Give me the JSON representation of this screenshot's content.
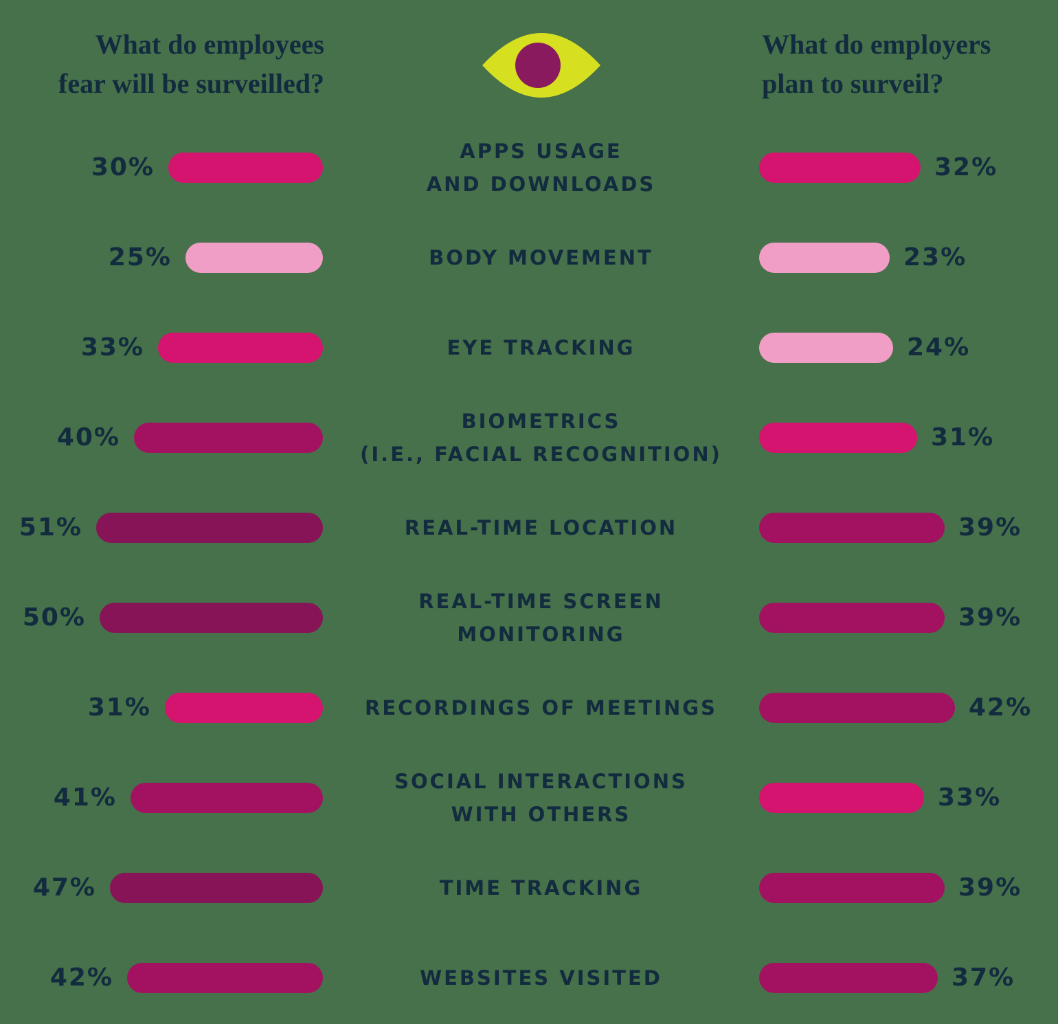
{
  "header": {
    "left_title": {
      "line1": "What do employees",
      "line2": "fear will be surveilled?"
    },
    "right_title": {
      "line1": "What do employers",
      "line2": "plan to surveil?"
    },
    "eye_icon": {
      "iris_color": "#D6E021",
      "pupil_color": "#8A1A5E"
    }
  },
  "colors": {
    "background": "#46714A",
    "text": "#132B3F",
    "tier_light": "#F09EC5",
    "tier_bright": "#D4146E",
    "tier_medium": "#A31261",
    "tier_dark": "#871456"
  },
  "rows": [
    {
      "label_lines": [
        "APPS USAGE",
        "AND DOWNLOADS"
      ],
      "left": {
        "value": 30,
        "display": "30%",
        "tier": "bright"
      },
      "right": {
        "value": 32,
        "display": "32%",
        "tier": "bright"
      }
    },
    {
      "label_lines": [
        "BODY MOVEMENT"
      ],
      "left": {
        "value": 25,
        "display": "25%",
        "tier": "light"
      },
      "right": {
        "value": 23,
        "display": "23%",
        "tier": "light"
      }
    },
    {
      "label_lines": [
        "EYE TRACKING"
      ],
      "left": {
        "value": 33,
        "display": "33%",
        "tier": "bright"
      },
      "right": {
        "value": 24,
        "display": "24%",
        "tier": "light"
      }
    },
    {
      "label_lines": [
        "BIOMETRICS",
        "(I.E., FACIAL RECOGNITION)"
      ],
      "left": {
        "value": 40,
        "display": "40%",
        "tier": "medium"
      },
      "right": {
        "value": 31,
        "display": "31%",
        "tier": "bright"
      }
    },
    {
      "label_lines": [
        "REAL-TIME LOCATION"
      ],
      "left": {
        "value": 51,
        "display": "51%",
        "tier": "dark"
      },
      "right": {
        "value": 39,
        "display": "39%",
        "tier": "medium"
      }
    },
    {
      "label_lines": [
        "REAL-TIME SCREEN",
        "MONITORING"
      ],
      "left": {
        "value": 50,
        "display": "50%",
        "tier": "dark"
      },
      "right": {
        "value": 39,
        "display": "39%",
        "tier": "medium"
      }
    },
    {
      "label_lines": [
        "RECORDINGS OF MEETINGS"
      ],
      "left": {
        "value": 31,
        "display": "31%",
        "tier": "bright"
      },
      "right": {
        "value": 42,
        "display": "42%",
        "tier": "medium"
      }
    },
    {
      "label_lines": [
        "SOCIAL INTERACTIONS",
        "WITH OTHERS"
      ],
      "left": {
        "value": 41,
        "display": "41%",
        "tier": "medium"
      },
      "right": {
        "value": 33,
        "display": "33%",
        "tier": "bright"
      }
    },
    {
      "label_lines": [
        "TIME TRACKING"
      ],
      "left": {
        "value": 47,
        "display": "47%",
        "tier": "dark"
      },
      "right": {
        "value": 39,
        "display": "39%",
        "tier": "medium"
      }
    },
    {
      "label_lines": [
        "WEBSITES VISITED"
      ],
      "left": {
        "value": 42,
        "display": "42%",
        "tier": "medium"
      },
      "right": {
        "value": 37,
        "display": "37%",
        "tier": "medium"
      }
    }
  ],
  "chart_data": {
    "type": "bar",
    "orientation": "horizontal bidirectional (butterfly / tornado chart)",
    "categories": [
      "APPS USAGE AND DOWNLOADS",
      "BODY MOVEMENT",
      "EYE TRACKING",
      "BIOMETRICS (I.E., FACIAL RECOGNITION)",
      "REAL-TIME LOCATION",
      "REAL-TIME SCREEN MONITORING",
      "RECORDINGS OF MEETINGS",
      "SOCIAL INTERACTIONS WITH OTHERS",
      "TIME TRACKING",
      "WEBSITES VISITED"
    ],
    "series": [
      {
        "name": "What do employees fear will be surveilled?",
        "side": "left",
        "values": [
          30,
          25,
          33,
          40,
          51,
          50,
          31,
          41,
          47,
          42
        ]
      },
      {
        "name": "What do employers plan to surveil?",
        "side": "right",
        "values": [
          32,
          23,
          24,
          31,
          39,
          39,
          42,
          33,
          39,
          37
        ]
      }
    ],
    "unit": "percent",
    "value_labels_shown": true,
    "axis_shown": false,
    "grid": false,
    "legend_position": "column titles at top of each side act as series labels",
    "color_encoding": "bar color darkens with higher value: ~23-25% light pink, ~30-33% bright magenta, ~37-42% dark magenta, ~47-51% plum"
  }
}
